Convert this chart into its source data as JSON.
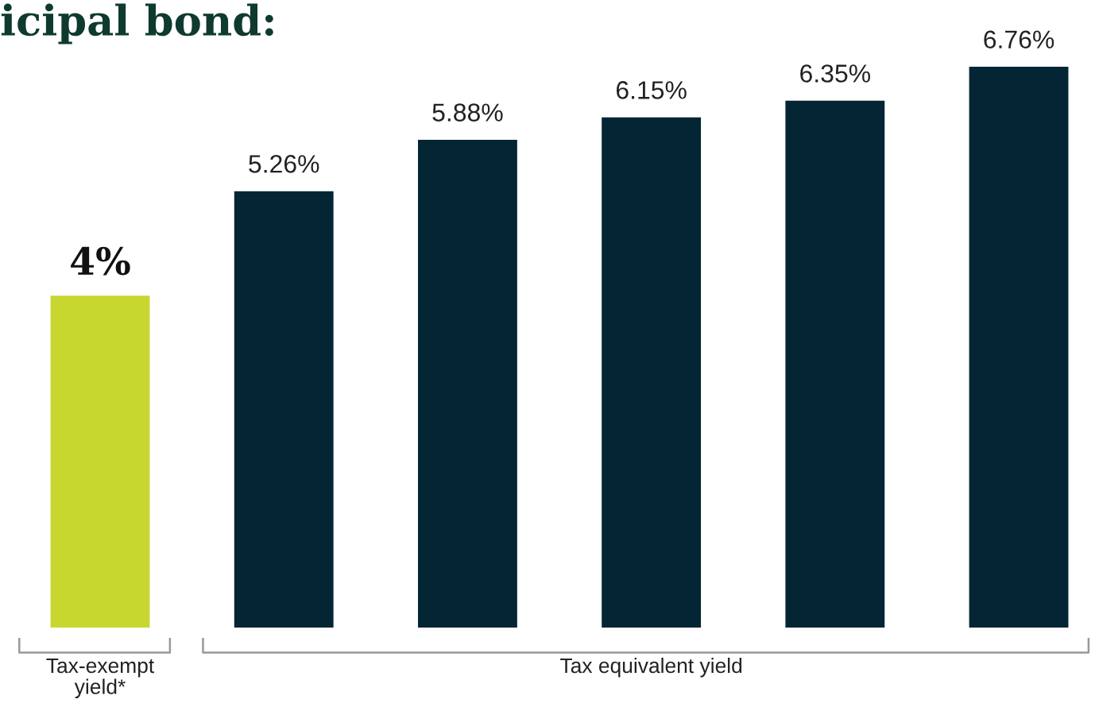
{
  "chart_data": {
    "type": "bar",
    "title": "icipal bond:",
    "categories": [
      null,
      null,
      null,
      null,
      null,
      null
    ],
    "values": [
      4,
      5.26,
      5.88,
      6.15,
      6.35,
      6.76
    ],
    "value_labels": [
      "4%",
      "5.26%",
      "5.88%",
      "6.15%",
      "6.35%",
      "6.76%"
    ],
    "colors": [
      "#c8d630",
      "#042533",
      "#042533",
      "#042533",
      "#042533",
      "#042533"
    ],
    "annotations": [
      "Tax-exempt\nyield*",
      "Tax equivalent yield"
    ],
    "grid": false,
    "legend": false
  }
}
